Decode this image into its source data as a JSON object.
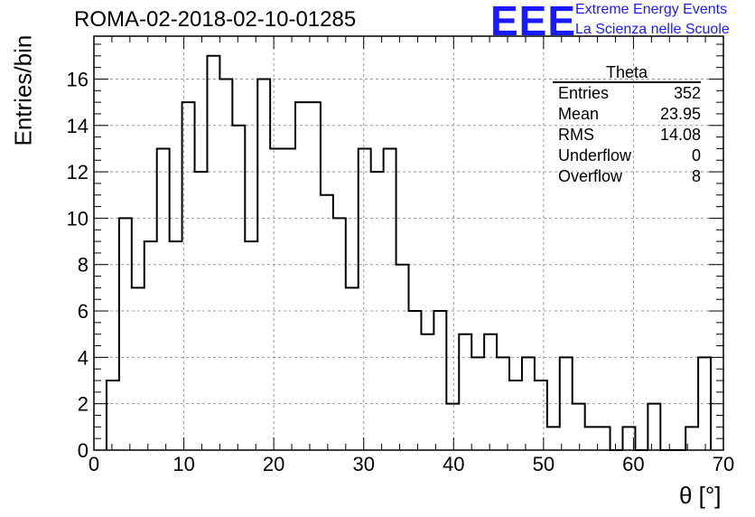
{
  "title": "ROMA-02-2018-02-10-01285",
  "logo": {
    "mark": "EEE",
    "line1": "Extreme Energy Events",
    "line2": "La Scienza nelle Scuole",
    "color": "#1a1aff"
  },
  "stats": {
    "name": "Theta",
    "rows": [
      {
        "label": "Entries",
        "value": "352"
      },
      {
        "label": "Mean",
        "value": "23.95"
      },
      {
        "label": "RMS",
        "value": "14.08"
      },
      {
        "label": "Underflow",
        "value": "0"
      },
      {
        "label": "Overflow",
        "value": "8"
      }
    ]
  },
  "chart_data": {
    "type": "bar",
    "title": "ROMA-02-2018-02-10-01285",
    "xlabel": "θ [°]",
    "ylabel": "Entries/bin",
    "xlim": [
      0,
      70
    ],
    "ylim": [
      0,
      17.85
    ],
    "grid": true,
    "bin_width": 1.4,
    "bin_start": 1.4,
    "values": [
      3,
      10,
      7,
      9,
      13,
      9,
      15,
      12,
      17,
      16,
      14,
      9,
      16,
      13,
      13,
      15,
      15,
      11,
      10,
      7,
      13,
      12,
      13,
      8,
      6,
      5,
      6,
      2,
      5,
      4,
      5,
      4,
      3,
      4,
      3,
      1,
      4,
      2,
      1,
      1,
      0,
      1,
      0,
      2,
      0,
      0,
      1,
      4
    ],
    "x_ticks": [
      0,
      10,
      20,
      30,
      40,
      50,
      60,
      70
    ],
    "y_ticks": [
      0,
      2,
      4,
      6,
      8,
      10,
      12,
      14,
      16
    ]
  }
}
